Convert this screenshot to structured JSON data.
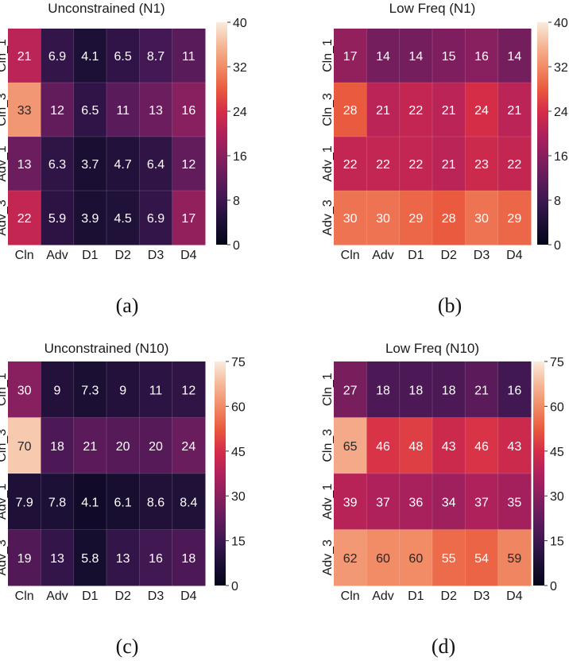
{
  "chart_data": [
    {
      "type": "heatmap",
      "title": "Unconstrained (N1)",
      "caption": "(a)",
      "x_labels": [
        "Cln",
        "Adv",
        "D1",
        "D2",
        "D3",
        "D4"
      ],
      "y_labels": [
        "Cln_1",
        "Cln_3",
        "Adv_1",
        "Adv_3"
      ],
      "values": [
        [
          21,
          6.9,
          4.1,
          6.5,
          8.7,
          11
        ],
        [
          33,
          12,
          6.5,
          11,
          13,
          16
        ],
        [
          13,
          6.3,
          3.7,
          4.7,
          6.4,
          12
        ],
        [
          22,
          5.9,
          3.9,
          4.5,
          6.9,
          17
        ]
      ],
      "colorbar": {
        "range": [
          0,
          40
        ],
        "ticks": [
          "0",
          "8",
          "16",
          "24",
          "32",
          "40"
        ]
      },
      "colormap": "rocket"
    },
    {
      "type": "heatmap",
      "title": "Low Freq (N1)",
      "caption": "(b)",
      "x_labels": [
        "Cln",
        "Adv",
        "D1",
        "D2",
        "D3",
        "D4"
      ],
      "y_labels": [
        "Cln_1",
        "Cln_3",
        "Adv_1",
        "Adv_3"
      ],
      "values": [
        [
          17,
          14,
          14,
          15,
          16,
          14
        ],
        [
          28,
          21,
          22,
          21,
          24,
          21
        ],
        [
          22,
          22,
          22,
          21,
          23,
          22
        ],
        [
          30,
          30,
          29,
          28,
          30,
          29
        ]
      ],
      "colorbar": {
        "range": [
          0,
          40
        ],
        "ticks": [
          "0",
          "8",
          "16",
          "24",
          "32",
          "40"
        ]
      },
      "colormap": "rocket"
    },
    {
      "type": "heatmap",
      "title": "Unconstrained (N10)",
      "caption": "(c)",
      "x_labels": [
        "Cln",
        "Adv",
        "D1",
        "D2",
        "D3",
        "D4"
      ],
      "y_labels": [
        "Cln_1",
        "Cln_3",
        "Adv_1",
        "Adv_3"
      ],
      "values": [
        [
          30,
          9,
          7.3,
          9,
          11,
          12
        ],
        [
          70,
          18,
          21,
          20,
          20,
          24
        ],
        [
          7.9,
          7.8,
          4.1,
          6.1,
          8.6,
          8.4
        ],
        [
          19,
          13,
          5.8,
          13,
          16,
          18
        ]
      ],
      "colorbar": {
        "range": [
          0,
          75
        ],
        "ticks": [
          "0",
          "15",
          "30",
          "45",
          "60",
          "75"
        ]
      },
      "colormap": "rocket"
    },
    {
      "type": "heatmap",
      "title": "Low Freq (N10)",
      "caption": "(d)",
      "x_labels": [
        "Cln",
        "Adv",
        "D1",
        "D2",
        "D3",
        "D4"
      ],
      "y_labels": [
        "Cln_1",
        "Cln_3",
        "Adv_1",
        "Adv_3"
      ],
      "values": [
        [
          27,
          18,
          18,
          18,
          21,
          16
        ],
        [
          65,
          46,
          48,
          43,
          46,
          43
        ],
        [
          39,
          37,
          36,
          34,
          37,
          35
        ],
        [
          62,
          60,
          60,
          55,
          54,
          59
        ]
      ],
      "colorbar": {
        "range": [
          0,
          75
        ],
        "ticks": [
          "0",
          "15",
          "30",
          "45",
          "60",
          "75"
        ]
      },
      "colormap": "rocket"
    }
  ]
}
